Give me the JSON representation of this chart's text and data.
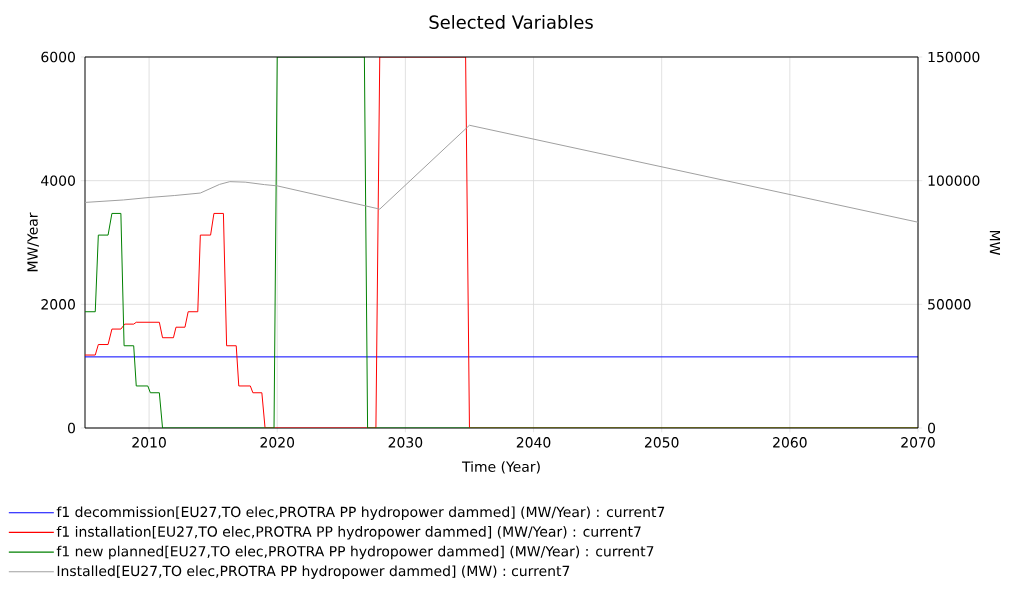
{
  "chart_data": {
    "type": "line",
    "title": "Selected Variables",
    "xlabel": "Time (Year)",
    "ylabel": "MW/Year",
    "y2label": "MW",
    "xlim": [
      2005,
      2070
    ],
    "xticks": [
      2010,
      2020,
      2030,
      2040,
      2050,
      2060,
      2070
    ],
    "ylim": [
      0,
      6000
    ],
    "yticks": [
      0,
      2000,
      4000,
      6000
    ],
    "y2lim": [
      0,
      150000
    ],
    "y2ticks": [
      0,
      50000,
      100000,
      150000
    ],
    "grid": true,
    "legend": "bottom",
    "marker": "none",
    "line_style": "solid",
    "series": [
      {
        "name": "f1 decommission[EU27,TO elec,PROTRA PP hydropower dammed] (MW/Year) : current7",
        "color": "#0000ff",
        "x": [
          2005,
          2070
        ],
        "values": [
          1150,
          1150
        ]
      },
      {
        "name": "f1 installation[EU27,TO elec,PROTRA PP hydropower dammed] (MW/Year) : current7",
        "color": "#ff0000",
        "x": [
          2005,
          2005.8,
          2006.04,
          2006.8,
          2007.1,
          2007.8,
          2008.1,
          2008.8,
          2009.0,
          2010.8,
          2011.05,
          2011.9,
          2012.1,
          2012.8,
          2013.05,
          2013.8,
          2014.0,
          2014.8,
          2015.06,
          2015.8,
          2016.05,
          2016.8,
          2017.0,
          2017.9,
          2018.1,
          2018.8,
          2019.05,
          2027.7,
          2028.0,
          2034.7,
          2035.0,
          2070
        ],
        "values": [
          1180,
          1180,
          1350,
          1350,
          1600,
          1600,
          1680,
          1680,
          1710,
          1710,
          1460,
          1460,
          1630,
          1630,
          1880,
          1880,
          3120,
          3120,
          3470,
          3470,
          1330,
          1330,
          680,
          680,
          570,
          570,
          0,
          0,
          6000,
          6000,
          0,
          0
        ]
      },
      {
        "name": "f1 new planned[EU27,TO elec,PROTRA PP hydropower dammed] (MW/Year) : current7",
        "color": "#008000",
        "x": [
          2005,
          2005.8,
          2006.04,
          2006.8,
          2007.1,
          2007.8,
          2008.05,
          2008.8,
          2009.0,
          2009.9,
          2010.1,
          2010.8,
          2011.05,
          2019.75,
          2020.0,
          2026.8,
          2027.05,
          2070
        ],
        "values": [
          1880,
          1880,
          3120,
          3120,
          3470,
          3470,
          1330,
          1330,
          680,
          680,
          570,
          570,
          0,
          0,
          6000,
          6000,
          0,
          0
        ]
      },
      {
        "name": "Installed[EU27,TO elec,PROTRA PP hydropower dammed] (MW) : current7",
        "color": "#a0a0a0",
        "axis": "y2",
        "x": [
          2005,
          2008,
          2010,
          2012,
          2014,
          2015.5,
          2016.3,
          2017.5,
          2019,
          2020,
          2028,
          2035,
          2070
        ],
        "values": [
          91200,
          92200,
          93200,
          94000,
          95000,
          98500,
          99600,
          99400,
          98400,
          97900,
          88500,
          122400,
          83200
        ]
      }
    ]
  }
}
